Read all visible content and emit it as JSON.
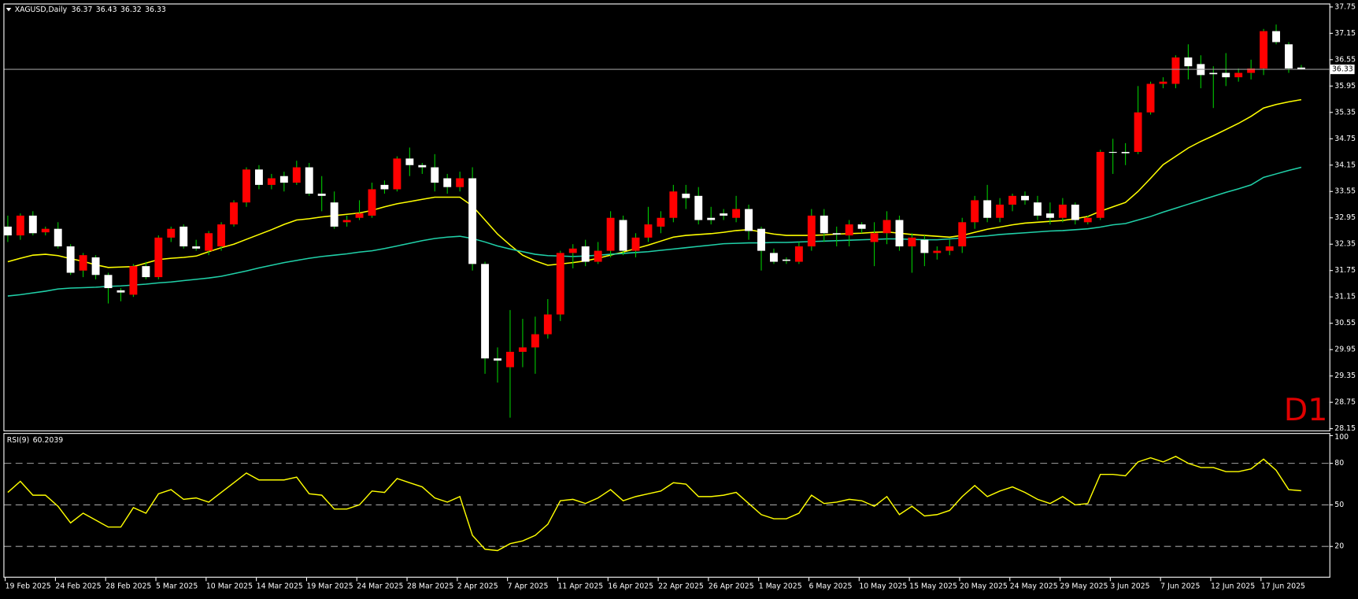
{
  "chart_data": [
    {
      "type": "candlestick",
      "symbol": "XAGUSD,Daily",
      "watermark": "D1",
      "categories": [
        "19 Feb 2025",
        null,
        null,
        null,
        "24 Feb 2025",
        null,
        null,
        null,
        "28 Feb 2025",
        null,
        null,
        null,
        "5 Mar 2025",
        null,
        null,
        null,
        "10 Mar 2025",
        null,
        null,
        null,
        "14 Mar 2025",
        null,
        null,
        null,
        "19 Mar 2025",
        null,
        null,
        null,
        "24 Mar 2025",
        null,
        null,
        null,
        "28 Mar 2025",
        null,
        null,
        null,
        "2 Apr 2025",
        null,
        null,
        null,
        "7 Apr 2025",
        null,
        null,
        null,
        "11 Apr 2025",
        null,
        null,
        null,
        "16 Apr 2025",
        null,
        null,
        null,
        "22 Apr 2025",
        null,
        null,
        null,
        "26 Apr 2025",
        null,
        null,
        null,
        "1 May 2025",
        null,
        null,
        null,
        "6 May 2025",
        null,
        null,
        null,
        "10 May 2025",
        null,
        null,
        null,
        "15 May 2025",
        null,
        null,
        null,
        "20 May 2025",
        null,
        null,
        null,
        "24 May 2025",
        null,
        null,
        null,
        "29 May 2025",
        null,
        null,
        null,
        "3 Jun 2025",
        null,
        null,
        null,
        "7 Jun 2025",
        null,
        null,
        null,
        "12 Jun 2025",
        null,
        null,
        null,
        "17 Jun 2025",
        null,
        null,
        null
      ],
      "open": [
        32.75,
        32.55,
        33.0,
        32.62,
        32.7,
        32.3,
        31.75,
        32.05,
        31.65,
        31.3,
        31.2,
        31.85,
        31.6,
        32.5,
        32.75,
        32.3,
        32.2,
        32.3,
        32.8,
        33.3,
        34.05,
        33.7,
        33.9,
        33.75,
        34.1,
        33.5,
        33.3,
        32.85,
        32.95,
        33.0,
        33.7,
        33.6,
        34.3,
        34.15,
        34.1,
        33.85,
        33.65,
        33.85,
        31.9,
        29.75,
        29.55,
        29.9,
        30.0,
        30.3,
        30.75,
        32.15,
        32.3,
        31.95,
        32.2,
        32.9,
        32.2,
        32.5,
        32.75,
        32.95,
        33.5,
        33.45,
        32.95,
        33.05,
        32.95,
        33.15,
        32.7,
        32.15,
        32.0,
        31.95,
        32.3,
        33.0,
        32.6,
        32.55,
        32.8,
        32.4,
        32.6,
        32.9,
        32.3,
        32.45,
        32.15,
        32.2,
        32.3,
        32.85,
        33.35,
        32.95,
        33.25,
        33.45,
        33.3,
        33.05,
        32.95,
        33.25,
        32.85,
        32.95,
        34.45,
        34.45,
        34.45,
        35.35,
        36.0,
        36.0,
        36.6,
        36.45,
        36.25,
        36.25,
        36.15,
        36.25,
        36.35,
        37.2,
        36.9,
        36.37
      ],
      "high": [
        33.0,
        33.05,
        33.1,
        32.75,
        32.85,
        32.35,
        32.15,
        32.1,
        31.7,
        31.35,
        31.9,
        31.95,
        32.55,
        32.75,
        32.8,
        32.45,
        32.65,
        32.85,
        33.35,
        34.1,
        34.15,
        33.95,
        34.0,
        34.25,
        34.2,
        33.9,
        33.55,
        33.0,
        33.35,
        33.75,
        33.8,
        34.35,
        34.55,
        34.2,
        34.4,
        33.95,
        34.0,
        34.1,
        31.95,
        30.0,
        30.85,
        30.65,
        30.7,
        31.1,
        32.2,
        32.35,
        32.45,
        32.4,
        33.1,
        33.0,
        32.6,
        33.2,
        33.1,
        33.7,
        33.7,
        33.65,
        33.2,
        33.15,
        33.45,
        33.25,
        32.75,
        32.25,
        32.05,
        32.4,
        33.15,
        33.15,
        32.75,
        32.9,
        32.85,
        32.85,
        33.1,
        33.0,
        32.6,
        32.55,
        32.3,
        32.45,
        32.95,
        33.45,
        33.7,
        33.4,
        33.5,
        33.55,
        33.45,
        33.3,
        33.4,
        33.3,
        33.0,
        34.5,
        34.75,
        34.65,
        35.95,
        36.05,
        36.15,
        36.65,
        36.9,
        36.65,
        36.4,
        36.7,
        36.35,
        36.55,
        37.25,
        37.35,
        36.95,
        36.43
      ],
      "low": [
        32.4,
        32.45,
        32.55,
        32.55,
        32.25,
        31.65,
        31.6,
        31.55,
        31.0,
        31.05,
        31.15,
        31.55,
        31.55,
        32.4,
        32.25,
        32.2,
        32.1,
        32.2,
        32.75,
        33.2,
        33.6,
        33.6,
        33.55,
        33.7,
        33.45,
        33.1,
        32.7,
        32.75,
        32.9,
        32.95,
        33.5,
        33.55,
        33.9,
        33.95,
        33.55,
        33.5,
        33.55,
        31.75,
        29.4,
        29.2,
        28.4,
        29.55,
        29.4,
        30.2,
        30.6,
        31.8,
        31.85,
        31.9,
        32.05,
        32.1,
        32.05,
        32.4,
        32.6,
        32.85,
        33.15,
        32.8,
        32.8,
        32.9,
        32.85,
        32.45,
        31.75,
        31.9,
        31.9,
        31.9,
        32.2,
        32.4,
        32.3,
        32.3,
        32.6,
        31.85,
        32.35,
        32.2,
        31.7,
        31.85,
        32.0,
        32.1,
        32.15,
        32.7,
        32.85,
        32.85,
        33.1,
        33.25,
        32.9,
        32.8,
        32.85,
        32.8,
        32.8,
        32.9,
        33.95,
        34.15,
        34.4,
        35.3,
        35.9,
        35.9,
        36.1,
        35.9,
        35.45,
        35.95,
        36.05,
        36.1,
        36.2,
        36.9,
        36.25,
        36.32
      ],
      "close": [
        32.55,
        33.0,
        32.6,
        32.7,
        32.3,
        31.7,
        32.1,
        31.65,
        31.35,
        31.25,
        31.85,
        31.6,
        32.5,
        32.7,
        32.3,
        32.25,
        32.6,
        32.8,
        33.3,
        34.05,
        33.7,
        33.85,
        33.75,
        34.1,
        33.5,
        33.45,
        32.75,
        32.9,
        33.05,
        33.6,
        33.6,
        34.3,
        34.15,
        34.1,
        33.75,
        33.65,
        33.85,
        31.9,
        29.75,
        29.7,
        29.9,
        30.0,
        30.3,
        30.75,
        32.15,
        32.25,
        31.95,
        32.2,
        32.95,
        32.2,
        32.5,
        32.8,
        32.95,
        33.55,
        33.4,
        32.9,
        32.9,
        33.0,
        33.15,
        32.65,
        32.2,
        31.95,
        31.97,
        32.3,
        33.0,
        32.6,
        32.57,
        32.8,
        32.7,
        32.6,
        32.9,
        32.3,
        32.5,
        32.15,
        32.2,
        32.3,
        32.85,
        33.35,
        32.95,
        33.25,
        33.45,
        33.35,
        33.0,
        32.95,
        33.25,
        32.9,
        32.95,
        34.45,
        34.43,
        34.42,
        35.35,
        36.0,
        36.05,
        36.6,
        36.4,
        36.2,
        36.22,
        36.15,
        36.25,
        36.35,
        37.2,
        36.95,
        36.35,
        36.33
      ],
      "up_color": "#ff0000",
      "down_color": "#ffffff",
      "wick_color": "#00c800",
      "overlays": [
        {
          "color": "#ffff00",
          "values": [
            31.95,
            32.03,
            32.1,
            32.12,
            32.09,
            32.02,
            31.96,
            31.88,
            31.82,
            31.83,
            31.84,
            31.92,
            32.0,
            32.03,
            32.05,
            32.08,
            32.18,
            32.27,
            32.35,
            32.46,
            32.57,
            32.68,
            32.8,
            32.9,
            32.93,
            32.97,
            33.0,
            33.03,
            33.06,
            33.12,
            33.2,
            33.27,
            33.32,
            33.37,
            33.42,
            33.42,
            33.42,
            33.22,
            32.9,
            32.58,
            32.33,
            32.1,
            31.97,
            31.87,
            31.9,
            31.93,
            31.97,
            32.03,
            32.1,
            32.17,
            32.25,
            32.33,
            32.42,
            32.51,
            32.55,
            32.57,
            32.59,
            32.62,
            32.66,
            32.68,
            32.63,
            32.58,
            32.55,
            32.55,
            32.55,
            32.56,
            32.58,
            32.59,
            32.6,
            32.62,
            32.63,
            32.6,
            32.57,
            32.55,
            32.53,
            32.51,
            32.55,
            32.62,
            32.69,
            32.74,
            32.79,
            32.83,
            32.85,
            32.87,
            32.89,
            32.93,
            32.98,
            33.1,
            33.2,
            33.3,
            33.55,
            33.85,
            34.16,
            34.35,
            34.54,
            34.69,
            34.82,
            34.96,
            35.1,
            35.26,
            35.45,
            35.53,
            35.59,
            35.64
          ]
        },
        {
          "color": "#20d0a8",
          "values": [
            31.17,
            31.2,
            31.24,
            31.28,
            31.33,
            31.35,
            31.36,
            31.37,
            31.39,
            31.4,
            31.42,
            31.44,
            31.47,
            31.49,
            31.52,
            31.55,
            31.58,
            31.62,
            31.68,
            31.74,
            31.81,
            31.87,
            31.93,
            31.98,
            32.03,
            32.07,
            32.1,
            32.13,
            32.17,
            32.2,
            32.25,
            32.31,
            32.37,
            32.43,
            32.48,
            32.51,
            32.53,
            32.48,
            32.4,
            32.31,
            32.24,
            32.18,
            32.12,
            32.09,
            32.08,
            32.07,
            32.08,
            32.1,
            32.12,
            32.14,
            32.16,
            32.18,
            32.21,
            32.24,
            32.27,
            32.3,
            32.33,
            32.36,
            32.37,
            32.38,
            32.38,
            32.39,
            32.39,
            32.4,
            32.41,
            32.42,
            32.43,
            32.44,
            32.45,
            32.46,
            32.47,
            32.47,
            32.46,
            32.45,
            32.45,
            32.47,
            32.49,
            32.52,
            32.54,
            32.57,
            32.59,
            32.61,
            32.63,
            32.65,
            32.66,
            32.68,
            32.7,
            32.74,
            32.79,
            32.82,
            32.9,
            32.98,
            33.08,
            33.17,
            33.26,
            33.35,
            33.44,
            33.53,
            33.61,
            33.7,
            33.87,
            33.95,
            34.03,
            34.1
          ]
        }
      ],
      "current_price_line": true,
      "ylim": [
        28.15,
        37.75
      ],
      "yticks": [
        37.75,
        37.15,
        36.55,
        35.95,
        35.35,
        34.75,
        34.15,
        33.55,
        32.95,
        32.35,
        31.75,
        31.15,
        30.55,
        29.95,
        29.35,
        28.75,
        28.15
      ]
    },
    {
      "type": "line",
      "title": "RSI(9)",
      "color": "#ffff00",
      "values": [
        59,
        67,
        57,
        57,
        49,
        37,
        44,
        39,
        34,
        34,
        48,
        44,
        58,
        61,
        54,
        55,
        52,
        59,
        66,
        73,
        68,
        68,
        68,
        70,
        58,
        57,
        47,
        47,
        50,
        60,
        59,
        69,
        66,
        63,
        55,
        52,
        56,
        28,
        18,
        17,
        22,
        24,
        28,
        36,
        53,
        54,
        51,
        55,
        61,
        53,
        56,
        58,
        60,
        66,
        65,
        56,
        56,
        57,
        59,
        51,
        43,
        40,
        40,
        44,
        57,
        51,
        52,
        54,
        53,
        49,
        56,
        43,
        49,
        42,
        43,
        46,
        56,
        64,
        56,
        60,
        63,
        59,
        54,
        51,
        56,
        50,
        51,
        72,
        72,
        71,
        81,
        84,
        81,
        85,
        80,
        77,
        77,
        74,
        74,
        76,
        83,
        75,
        61,
        60.2039
      ],
      "ylim": [
        0,
        100
      ],
      "yticks": [
        20,
        50,
        80,
        100
      ],
      "level_lines": true
    }
  ]
}
